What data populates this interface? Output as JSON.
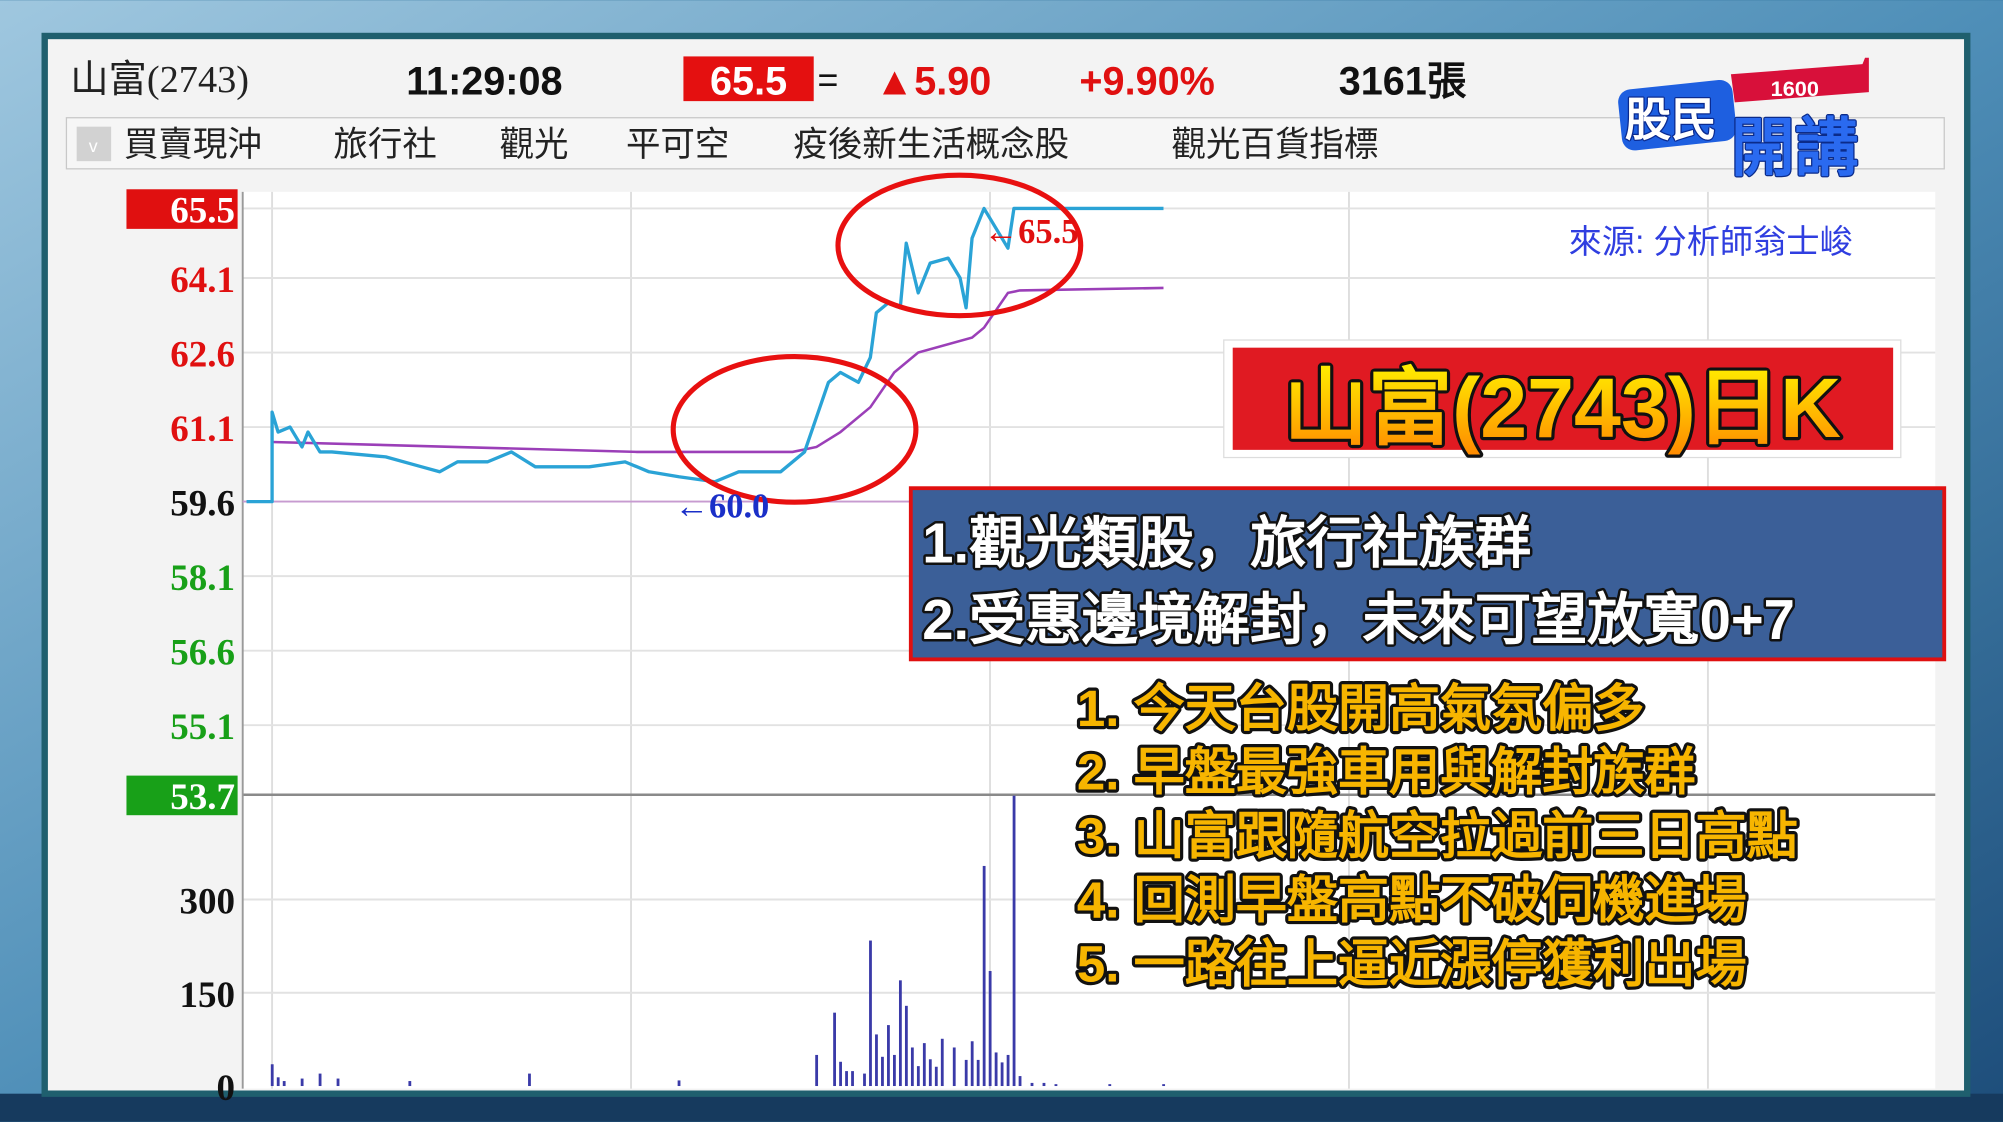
{
  "header": {
    "stock_name": "山富(2743)",
    "time": "11:29:08",
    "price": "65.5",
    "flat_mark": "=",
    "change": "▲5.90",
    "change_pct": "+9.90%",
    "volume": "3161張"
  },
  "tabs": [
    {
      "label": "買賣現沖"
    },
    {
      "label": "旅行社"
    },
    {
      "label": "觀光"
    },
    {
      "label": "平可空"
    },
    {
      "label": "疫後新生活概念股"
    },
    {
      "label": "觀光百貨指標"
    }
  ],
  "logo": {
    "text_main": "股民",
    "text_sub": "開講",
    "number": "1600"
  },
  "source_note": "來源: 分析師翁士峻",
  "title_banner": "山富(2743)日K",
  "blue_box": {
    "lines": [
      "1.觀光類股，旅行社族群",
      "2.受惠邊境解封，未來可望放寬0+7"
    ]
  },
  "notes": [
    "1. 今天台股開高氣氛偏多",
    "2. 早盤最強車用與解封族群",
    "3. 山富跟隨航空拉過前三日高點",
    "4. 回測早盤高點不破伺機進場",
    "5. 一路往上逼近漲停獲利出場"
  ],
  "annotations": {
    "high_marker": "←65.5",
    "low_marker": "←60.0"
  },
  "colors": {
    "price_line": "#2aa3d6",
    "avg_line": "#9b3fb8",
    "volume_bar": "#3a3aa8",
    "up_red": "#e01010",
    "down_green": "#18a018",
    "circle": "#e81010",
    "note_yellow": "#f7b500",
    "blue_box": "#3b5f98",
    "source_blue": "#2f3ee0"
  },
  "chart_data": [
    {
      "type": "line",
      "name_hint": "intraday price",
      "x_range": [
        "09:00",
        "13:30"
      ],
      "ylim": [
        53.7,
        65.5
      ],
      "yticks": [
        {
          "label": "65.5",
          "value": 65.5,
          "style": "limit-up"
        },
        {
          "label": "64.1",
          "value": 64.1,
          "style": "up"
        },
        {
          "label": "62.6",
          "value": 62.6,
          "style": "up"
        },
        {
          "label": "61.1",
          "value": 61.1,
          "style": "up"
        },
        {
          "label": "59.6",
          "value": 59.6,
          "style": "ref"
        },
        {
          "label": "58.1",
          "value": 58.1,
          "style": "down"
        },
        {
          "label": "56.6",
          "value": 56.6,
          "style": "down"
        },
        {
          "label": "55.1",
          "value": 55.1,
          "style": "down"
        },
        {
          "label": "53.7",
          "value": 53.7,
          "style": "limit-down"
        }
      ],
      "reference_price": 59.6,
      "grid": true,
      "price": [
        [
          "09:00",
          59.6
        ],
        [
          "09:00",
          61.4
        ],
        [
          "09:01",
          61.0
        ],
        [
          "09:03",
          61.1
        ],
        [
          "09:05",
          60.7
        ],
        [
          "09:06",
          61.0
        ],
        [
          "09:08",
          60.6
        ],
        [
          "09:10",
          60.6
        ],
        [
          "09:19",
          60.5
        ],
        [
          "09:25",
          60.3
        ],
        [
          "09:28",
          60.2
        ],
        [
          "09:31",
          60.4
        ],
        [
          "09:36",
          60.4
        ],
        [
          "09:40",
          60.6
        ],
        [
          "09:44",
          60.3
        ],
        [
          "09:53",
          60.3
        ],
        [
          "09:59",
          60.4
        ],
        [
          "10:03",
          60.2
        ],
        [
          "10:08",
          60.1
        ],
        [
          "10:14",
          60.0
        ],
        [
          "10:18",
          60.2
        ],
        [
          "10:25",
          60.2
        ],
        [
          "10:29",
          60.6
        ],
        [
          "10:31",
          61.3
        ],
        [
          "10:33",
          62.0
        ],
        [
          "10:35",
          62.2
        ],
        [
          "10:38",
          62.0
        ],
        [
          "10:40",
          62.5
        ],
        [
          "10:41",
          63.4
        ],
        [
          "10:43",
          63.6
        ],
        [
          "10:45",
          63.5
        ],
        [
          "10:46",
          64.8
        ],
        [
          "10:48",
          63.8
        ],
        [
          "10:50",
          64.4
        ],
        [
          "10:53",
          64.5
        ],
        [
          "10:55",
          64.1
        ],
        [
          "10:56",
          63.5
        ],
        [
          "10:57",
          64.9
        ],
        [
          "10:59",
          65.5
        ],
        [
          "11:01",
          65.1
        ],
        [
          "11:03",
          64.7
        ],
        [
          "11:04",
          65.5
        ],
        [
          "11:29",
          65.5
        ]
      ],
      "average": [
        [
          "09:00",
          60.8
        ],
        [
          "10:01",
          60.6
        ],
        [
          "10:27",
          60.6
        ],
        [
          "10:31",
          60.7
        ],
        [
          "10:35",
          61.0
        ],
        [
          "10:40",
          61.5
        ],
        [
          "10:44",
          62.2
        ],
        [
          "10:48",
          62.6
        ],
        [
          "10:57",
          62.9
        ],
        [
          "10:59",
          63.1
        ],
        [
          "11:03",
          63.8
        ],
        [
          "11:05",
          63.85
        ],
        [
          "11:29",
          63.9
        ]
      ]
    },
    {
      "type": "bar",
      "name_hint": "volume",
      "ylim": [
        0,
        450
      ],
      "yticks": [
        {
          "label": "300",
          "value": 300
        },
        {
          "label": "150",
          "value": 150
        },
        {
          "label": "0",
          "value": 0
        }
      ],
      "volume": [
        [
          "09:00",
          35
        ],
        [
          "09:01",
          14
        ],
        [
          "09:02",
          8
        ],
        [
          "09:05",
          12
        ],
        [
          "09:08",
          20
        ],
        [
          "09:11",
          12
        ],
        [
          "09:23",
          8
        ],
        [
          "09:43",
          20
        ],
        [
          "10:08",
          9
        ],
        [
          "10:31",
          50
        ],
        [
          "10:34",
          118
        ],
        [
          "10:35",
          39
        ],
        [
          "10:36",
          24
        ],
        [
          "10:37",
          24
        ],
        [
          "10:39",
          20
        ],
        [
          "10:40",
          234
        ],
        [
          "10:41",
          83
        ],
        [
          "10:42",
          47
        ],
        [
          "10:43",
          98
        ],
        [
          "10:44",
          50
        ],
        [
          "10:45",
          170
        ],
        [
          "10:46",
          129
        ],
        [
          "10:47",
          62
        ],
        [
          "10:48",
          32
        ],
        [
          "10:49",
          69
        ],
        [
          "10:50",
          43
        ],
        [
          "10:51",
          31
        ],
        [
          "10:52",
          76
        ],
        [
          "10:54",
          62
        ],
        [
          "10:56",
          42
        ],
        [
          "10:57",
          72
        ],
        [
          "10:58",
          42
        ],
        [
          "10:59",
          354
        ],
        [
          "11:00",
          185
        ],
        [
          "11:01",
          54
        ],
        [
          "11:02",
          38
        ],
        [
          "11:03",
          50
        ],
        [
          "11:04",
          467
        ],
        [
          "11:05",
          16
        ],
        [
          "11:07",
          5
        ],
        [
          "11:09",
          5
        ],
        [
          "11:11",
          3
        ],
        [
          "11:20",
          3
        ],
        [
          "11:29",
          3
        ]
      ]
    }
  ]
}
